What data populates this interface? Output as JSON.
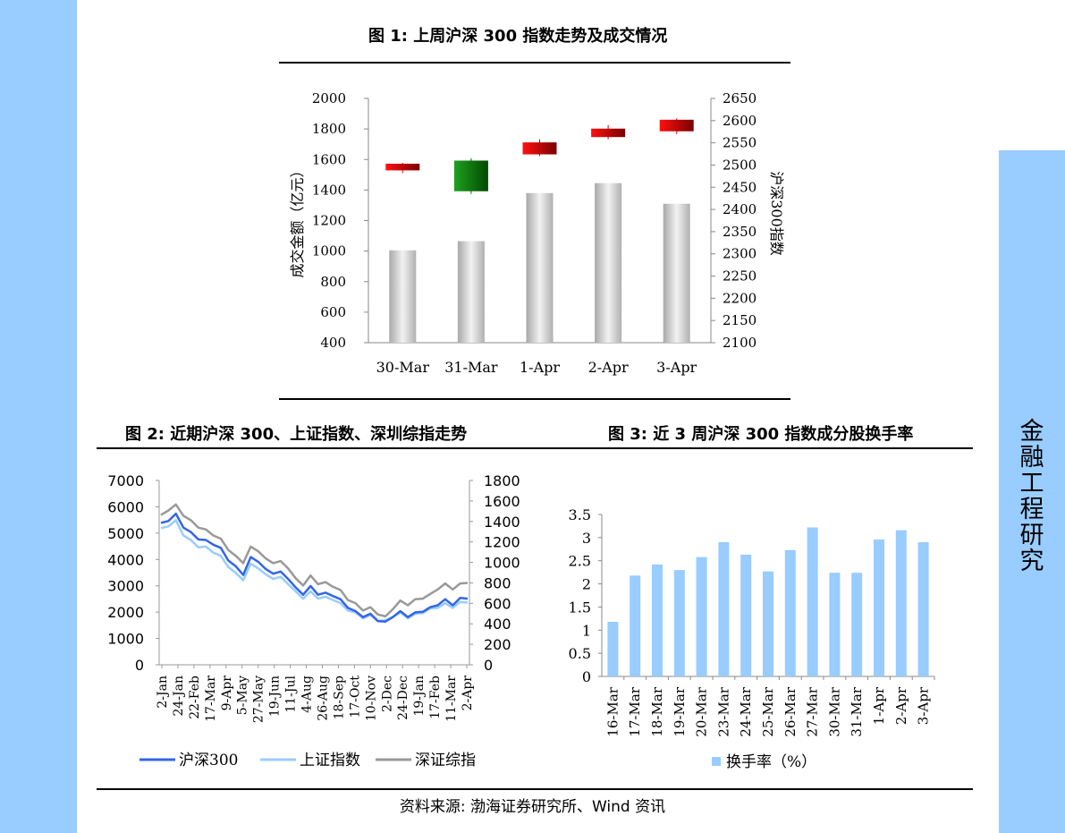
{
  "sidebar": {
    "text": "金融工程研究",
    "color": "#99CCFF"
  },
  "figure1": {
    "title": "图 1:  上周沪深 300 指数走势及成交情况"
  },
  "figure2": {
    "title": "图 2:  近期沪深 300、上证指数、深圳综指走势"
  },
  "figure3": {
    "title": "图 3:  近 3 周沪深 300 指数成分股换手率"
  },
  "source": "资料来源:  渤海证券研究所、Wind 资讯",
  "chart_data": [
    {
      "type": "bar",
      "id": "figure1",
      "categories": [
        "30-Mar",
        "31-Mar",
        "1-Apr",
        "2-Apr",
        "3-Apr"
      ],
      "ylabel": "成交金额（亿元）",
      "y2label": "沪深300指数",
      "ylim": [
        400,
        2000
      ],
      "yticks": [
        400,
        600,
        800,
        1000,
        1200,
        1400,
        1600,
        1800,
        2000
      ],
      "y2lim": [
        2100,
        2650
      ],
      "y2ticks": [
        2100,
        2150,
        2200,
        2250,
        2300,
        2350,
        2400,
        2450,
        2500,
        2550,
        2600,
        2650
      ],
      "volume": [
        1005,
        1065,
        1380,
        1445,
        1310
      ],
      "candles": [
        {
          "open": 2488,
          "close": 2503,
          "high": 2505,
          "low": 2482
        },
        {
          "open": 2510,
          "close": 2441,
          "high": 2515,
          "low": 2435
        },
        {
          "open": 2524,
          "close": 2551,
          "high": 2558,
          "low": 2520
        },
        {
          "open": 2563,
          "close": 2582,
          "high": 2590,
          "low": 2558
        },
        {
          "open": 2576,
          "close": 2602,
          "high": 2605,
          "low": 2570
        }
      ],
      "colors": {
        "bar": "#C8C8C8",
        "up": "#E00000",
        "down": "#008000"
      }
    },
    {
      "type": "line",
      "id": "figure2",
      "xticks": [
        "2-Jan",
        "24-Jan",
        "22-Feb",
        "17-Mar",
        "9-Apr",
        "5-May",
        "27-May",
        "19-Jun",
        "11-Jul",
        "4-Aug",
        "26-Aug",
        "18-Sep",
        "17-Oct",
        "10-Nov",
        "2-Dec",
        "24-Dec",
        "19-Jan",
        "17-Feb",
        "11-Mar",
        "2-Apr"
      ],
      "ylim": [
        0,
        7000
      ],
      "yticks": [
        0,
        1000,
        2000,
        3000,
        4000,
        5000,
        6000,
        7000
      ],
      "y2lim": [
        0,
        1800
      ],
      "y2ticks": [
        0,
        200,
        400,
        600,
        800,
        1000,
        1200,
        1400,
        1600,
        1800
      ],
      "series": [
        {
          "name": "沪深300",
          "color": "#3366E6",
          "axis": "left",
          "values": [
            5350,
            5500,
            5700,
            5250,
            5000,
            4800,
            4700,
            4600,
            4400,
            4000,
            3700,
            3450,
            4050,
            3950,
            3600,
            3500,
            3500,
            3300,
            2900,
            2700,
            2950,
            2700,
            2700,
            2650,
            2450,
            2200,
            2000,
            1850,
            1900,
            1700,
            1600,
            1850,
            2000,
            1850,
            1950,
            2050,
            2150,
            2300,
            2450,
            2300,
            2500,
            2550
          ]
        },
        {
          "name": "上证指数",
          "color": "#99CCFF",
          "axis": "left",
          "values": [
            5150,
            5300,
            5450,
            4950,
            4700,
            4500,
            4450,
            4300,
            4100,
            3750,
            3450,
            3250,
            3800,
            3700,
            3400,
            3300,
            3300,
            3100,
            2750,
            2550,
            2750,
            2550,
            2550,
            2500,
            2300,
            2100,
            1950,
            1800,
            1850,
            1700,
            1650,
            1850,
            1950,
            1800,
            1900,
            2000,
            2100,
            2200,
            2300,
            2200,
            2350,
            2400
          ]
        },
        {
          "name": "深证综指",
          "color": "#999999",
          "axis": "left",
          "values": [
            5650,
            5900,
            6050,
            5700,
            5450,
            5250,
            5100,
            4950,
            4750,
            4400,
            4100,
            3900,
            4450,
            4350,
            4000,
            3900,
            3900,
            3700,
            3250,
            3050,
            3350,
            3100,
            3100,
            3000,
            2800,
            2500,
            2300,
            2100,
            2150,
            1950,
            1800,
            2150,
            2400,
            2300,
            2450,
            2550,
            2650,
            2900,
            3050,
            2900,
            3050,
            3150
          ]
        }
      ]
    },
    {
      "type": "bar",
      "id": "figure3",
      "categories": [
        "16-Mar",
        "17-Mar",
        "18-Mar",
        "19-Mar",
        "20-Mar",
        "23-Mar",
        "24-Mar",
        "25-Mar",
        "26-Mar",
        "27-Mar",
        "30-Mar",
        "31-Mar",
        "1-Apr",
        "2-Apr",
        "3-Apr"
      ],
      "series": [
        {
          "name": "换手率（%）",
          "color": "#99CCFF",
          "values": [
            1.18,
            2.18,
            2.42,
            2.3,
            2.58,
            2.9,
            2.63,
            2.27,
            2.73,
            3.22,
            2.24,
            2.24,
            2.96,
            3.16,
            2.9
          ]
        }
      ],
      "ylim": [
        0,
        3.5
      ],
      "yticks": [
        "0",
        "0.5",
        "1",
        "1.5",
        "2",
        "2.5",
        "3",
        "3.5"
      ]
    }
  ]
}
